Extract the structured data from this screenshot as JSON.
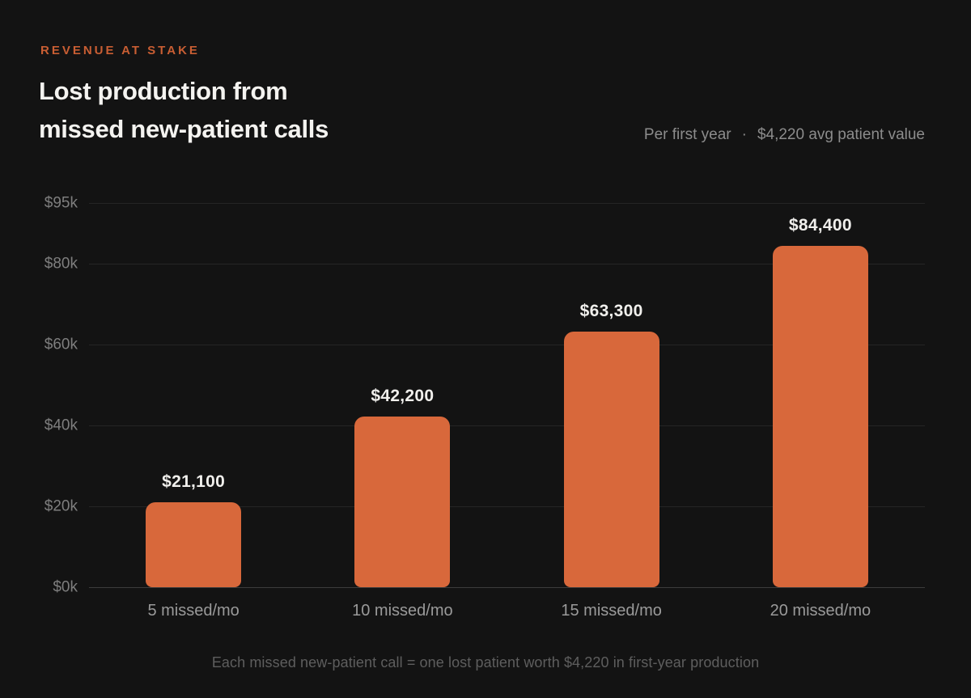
{
  "header": {
    "eyebrow": "REVENUE AT STAKE",
    "title_lines": [
      "Lost production from",
      "missed new-patient calls"
    ],
    "subtitle_left": "Per first year",
    "subtitle_separator": "·",
    "subtitle_right": "$4,220 avg patient value"
  },
  "chart_data": {
    "type": "bar",
    "title": "Lost production from missed new-patient calls",
    "categories": [
      "5 missed/mo",
      "10 missed/mo",
      "15 missed/mo",
      "20 missed/mo"
    ],
    "values": [
      21100,
      42200,
      63300,
      84400
    ],
    "value_labels": [
      "$21,100",
      "$42,200",
      "$63,300",
      "$84,400"
    ],
    "xlabel": "",
    "ylabel": "",
    "ylim": [
      0,
      95000
    ],
    "y_ticks": [
      {
        "label": "$95k",
        "value": 95000
      },
      {
        "label": "$80k",
        "value": 80000
      },
      {
        "label": "$60k",
        "value": 60000
      },
      {
        "label": "$40k",
        "value": 40000
      },
      {
        "label": "$20k",
        "value": 20000
      },
      {
        "label": "$0k",
        "value": 0
      }
    ],
    "grid": true,
    "legend": false,
    "bar_color": "#d8683b"
  },
  "footnote": "Each missed new-patient call = one lost patient worth $4,220 in first-year production",
  "colors": {
    "background": "#131313",
    "accent_eyebrow": "#c95e33",
    "bar": "#d8683b",
    "title_text": "#f4f3f0",
    "subtitle_text": "#8c8c8c",
    "axis_text": "#7e7e7e",
    "category_text": "#9a9a9a",
    "footnote_text": "#5e5e5e"
  }
}
